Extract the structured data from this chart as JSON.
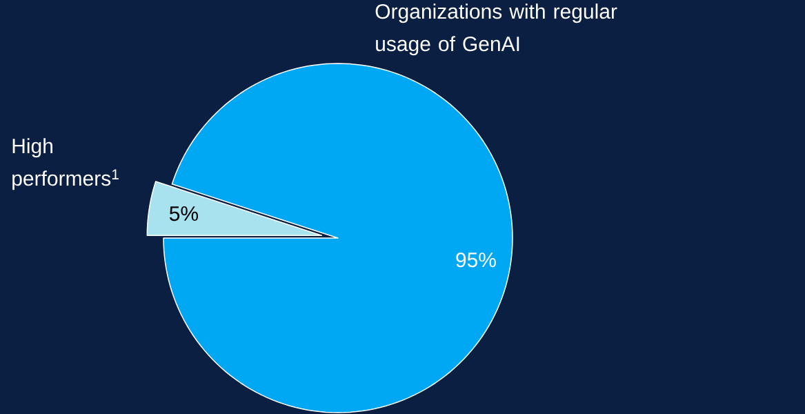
{
  "chart_data": {
    "type": "pie",
    "categories": [
      "High performers$^{1}$",
      "Organizations with regular usage of GenAI"
    ],
    "values": [
      5,
      95
    ],
    "colors": [
      "#a8e2ee",
      "#00a8f3"
    ],
    "value_labels": [
      "5%",
      "95%"
    ]
  }
}
